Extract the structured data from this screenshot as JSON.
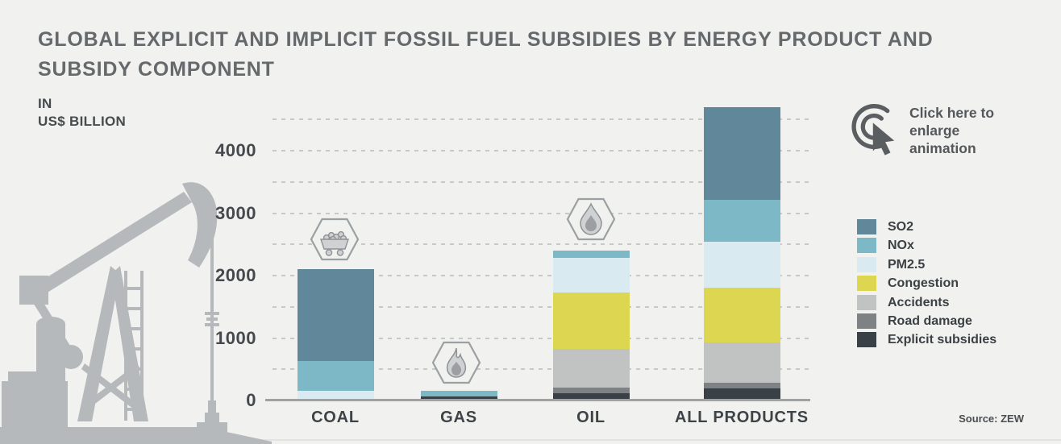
{
  "title": "GLOBAL EXPLICIT AND IMPLICIT FOSSIL FUEL SUBSIDIES BY ENERGY PRODUCT AND SUBSIDY COMPONENT",
  "ylabel": {
    "line1": "IN",
    "line2": "US$ BILLION"
  },
  "cta": {
    "label": "Click here to enlarge animation"
  },
  "source": "Source: ZEW",
  "colors": {
    "background": "#f1f1ef",
    "axis": "#9fa2a3",
    "grid": "#c8c8c6",
    "silhouette": "#b6b9bb",
    "text": "#45494d"
  },
  "chart_data": {
    "type": "bar",
    "stacked": true,
    "title": "Global explicit and implicit fossil fuel subsidies by energy product and subsidy component",
    "ylabel": "IN US$ BILLION",
    "categories": [
      "COAL",
      "GAS",
      "OIL",
      "ALL PRODUCTS"
    ],
    "series": [
      {
        "name": "SO2",
        "color": "#61889a",
        "values": [
          1470,
          0,
          0,
          1490
        ]
      },
      {
        "name": "NOx",
        "color": "#7cb8c6",
        "values": [
          480,
          100,
          120,
          670
        ]
      },
      {
        "name": "PM2.5",
        "color": "#d9eaf0",
        "values": [
          150,
          0,
          550,
          730
        ]
      },
      {
        "name": "Congestion",
        "color": "#ddd650",
        "values": [
          0,
          0,
          900,
          880
        ]
      },
      {
        "name": "Accidents",
        "color": "#c1c3c3",
        "values": [
          0,
          0,
          620,
          640
        ]
      },
      {
        "name": "Road damage",
        "color": "#7e8284",
        "values": [
          0,
          0,
          100,
          100
        ]
      },
      {
        "name": "Explicit subsidies",
        "color": "#394046",
        "values": [
          0,
          60,
          110,
          190
        ]
      }
    ],
    "totals": [
      2100,
      160,
      2400,
      4700
    ],
    "ylim": [
      0,
      4800
    ],
    "yticks": [
      0,
      1000,
      2000,
      3000,
      4000
    ],
    "grid_step": 500,
    "legend_position": "right",
    "grid": true
  }
}
